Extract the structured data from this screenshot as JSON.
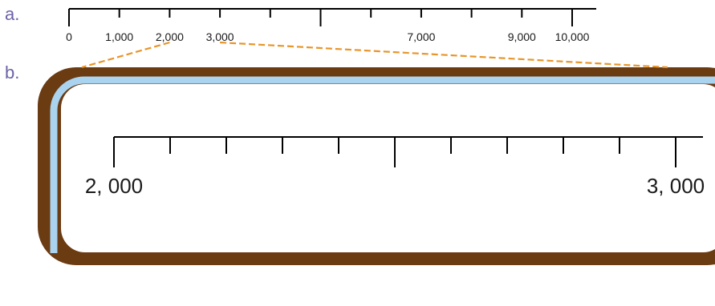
{
  "labels": {
    "part_a": "a.",
    "part_b": "b."
  },
  "line_a": {
    "min": 0,
    "max": 10000,
    "step": 1000,
    "tick_labels": [
      {
        "value": 0,
        "text": "0"
      },
      {
        "value": 1000,
        "text": "1,000"
      },
      {
        "value": 2000,
        "text": "2,000"
      },
      {
        "value": 3000,
        "text": "3,000"
      },
      {
        "value": 7000,
        "text": "7,000"
      },
      {
        "value": 9000,
        "text": "9,000"
      },
      {
        "value": 10000,
        "text": "10,000"
      }
    ]
  },
  "line_b": {
    "min": 2000,
    "max": 3000,
    "step": 100,
    "tick_labels": [
      {
        "value": 2000,
        "text": "2, 000"
      },
      {
        "value": 3000,
        "text": "3, 000"
      }
    ]
  },
  "zoom_range": [
    2000,
    3000
  ],
  "colors": {
    "label": "#6b63a8",
    "frame": "#6b3b12",
    "inner_band": "#a9d3ef",
    "panel": "#ffffff",
    "connector": "#e8952a",
    "line": "#000000",
    "text": "#1a1a1a"
  }
}
